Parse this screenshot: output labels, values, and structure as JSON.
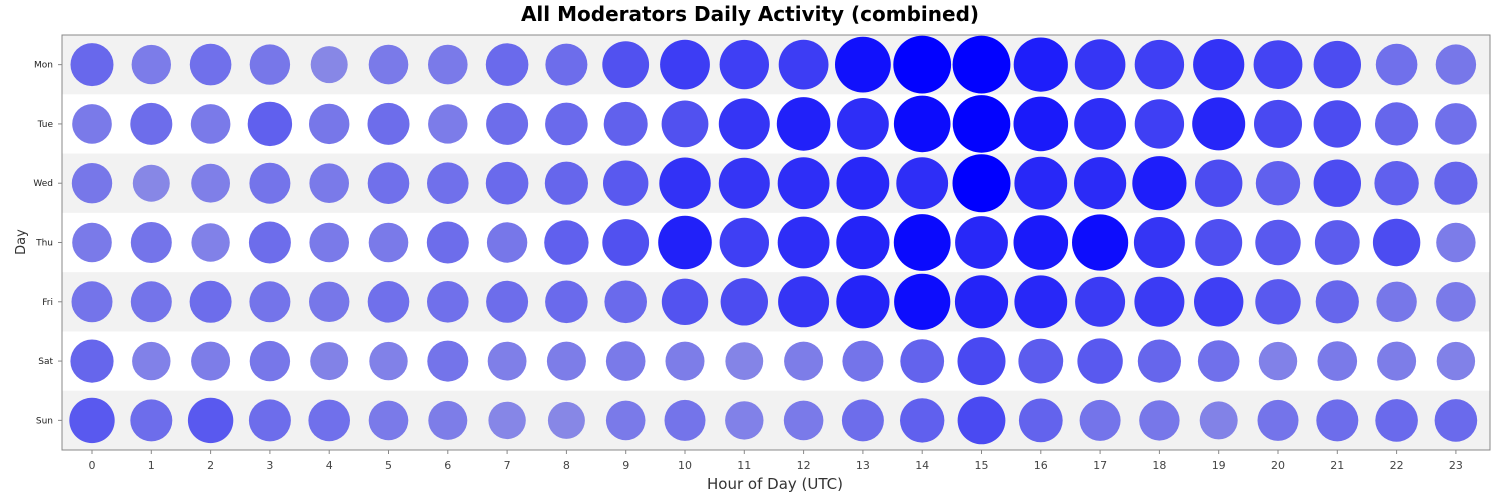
{
  "chart_data": {
    "type": "scatter",
    "subtype": "punch-card bubble",
    "title": "All Moderators Daily Activity (combined)",
    "xlabel": "Hour of Day (UTC)",
    "ylabel": "Day",
    "x_categories": [
      "0",
      "1",
      "2",
      "3",
      "4",
      "5",
      "6",
      "7",
      "8",
      "9",
      "10",
      "11",
      "12",
      "13",
      "14",
      "15",
      "16",
      "17",
      "18",
      "19",
      "20",
      "21",
      "22",
      "23"
    ],
    "y_categories": [
      "Mon",
      "Tue",
      "Wed",
      "Thu",
      "Fri",
      "Sat",
      "Sun"
    ],
    "value_scale": "relative intensity 0-100 (bubble size and color)",
    "values": [
      [
        37,
        25,
        32,
        28,
        18,
        26,
        26,
        36,
        34,
        51,
        63,
        62,
        63,
        90,
        99,
        99,
        82,
        67,
        62,
        69,
        59,
        54,
        32,
        28
      ],
      [
        26,
        34,
        26,
        42,
        28,
        34,
        25,
        34,
        36,
        41,
        51,
        68,
        80,
        72,
        93,
        98,
        84,
        72,
        62,
        77,
        56,
        54,
        38,
        32
      ],
      [
        28,
        18,
        23,
        30,
        26,
        32,
        32,
        36,
        38,
        46,
        70,
        68,
        72,
        76,
        72,
        100,
        76,
        74,
        82,
        54,
        42,
        54,
        42,
        38
      ],
      [
        26,
        30,
        22,
        34,
        26,
        26,
        34,
        28,
        42,
        51,
        80,
        62,
        72,
        78,
        94,
        76,
        84,
        92,
        68,
        52,
        46,
        44,
        54,
        25
      ],
      [
        30,
        30,
        34,
        30,
        28,
        32,
        32,
        34,
        36,
        36,
        50,
        54,
        68,
        78,
        92,
        78,
        76,
        64,
        64,
        62,
        46,
        38,
        28,
        26
      ],
      [
        38,
        22,
        24,
        28,
        21,
        22,
        30,
        23,
        24,
        26,
        24,
        20,
        24,
        30,
        40,
        56,
        44,
        46,
        38,
        32,
        22,
        26,
        24,
        22
      ],
      [
        46,
        34,
        46,
        34,
        32,
        26,
        24,
        19,
        18,
        26,
        30,
        22,
        26,
        34,
        42,
        55,
        40,
        30,
        28,
        21,
        30,
        34,
        36,
        36
      ]
    ],
    "colors": {
      "band": "#f2f2f2",
      "bubble_light": "#a5a5e1",
      "bubble_dark": "#0000ff"
    },
    "grid": false,
    "legend": "none"
  }
}
